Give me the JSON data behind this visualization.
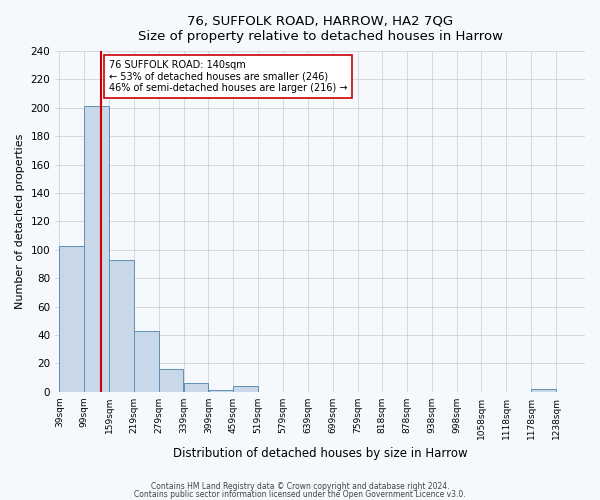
{
  "title": "76, SUFFOLK ROAD, HARROW, HA2 7QG",
  "subtitle": "Size of property relative to detached houses in Harrow",
  "xlabel": "Distribution of detached houses by size in Harrow",
  "ylabel": "Number of detached properties",
  "bar_edges": [
    39,
    99,
    159,
    219,
    279,
    339,
    399,
    459,
    519,
    579,
    639,
    699,
    759,
    818,
    878,
    938,
    998,
    1058,
    1118,
    1178,
    1238
  ],
  "bar_heights": [
    103,
    201,
    93,
    43,
    16,
    6,
    1,
    4,
    0,
    0,
    0,
    0,
    0,
    0,
    0,
    0,
    0,
    0,
    0,
    2,
    0
  ],
  "bar_color": "#c8d8e8",
  "bar_edge_color": "#6090b0",
  "red_line_x": 140,
  "red_line_color": "#cc0000",
  "annotation_text": "76 SUFFOLK ROAD: 140sqm\n← 53% of detached houses are smaller (246)\n46% of semi-detached houses are larger (216) →",
  "annotation_box_color": "#ffffff",
  "annotation_box_edge": "#cc0000",
  "ylim": [
    0,
    240
  ],
  "yticks": [
    0,
    20,
    40,
    60,
    80,
    100,
    120,
    140,
    160,
    180,
    200,
    220,
    240
  ],
  "tick_labels": [
    "39sqm",
    "99sqm",
    "159sqm",
    "219sqm",
    "279sqm",
    "339sqm",
    "399sqm",
    "459sqm",
    "519sqm",
    "579sqm",
    "639sqm",
    "699sqm",
    "759sqm",
    "818sqm",
    "878sqm",
    "938sqm",
    "998sqm",
    "1058sqm",
    "1118sqm",
    "1178sqm",
    "1238sqm"
  ],
  "footer1": "Contains HM Land Registry data © Crown copyright and database right 2024.",
  "footer2": "Contains public sector information licensed under the Open Government Licence v3.0.",
  "bg_color": "#f5f8fc",
  "grid_color": "#cccccc"
}
